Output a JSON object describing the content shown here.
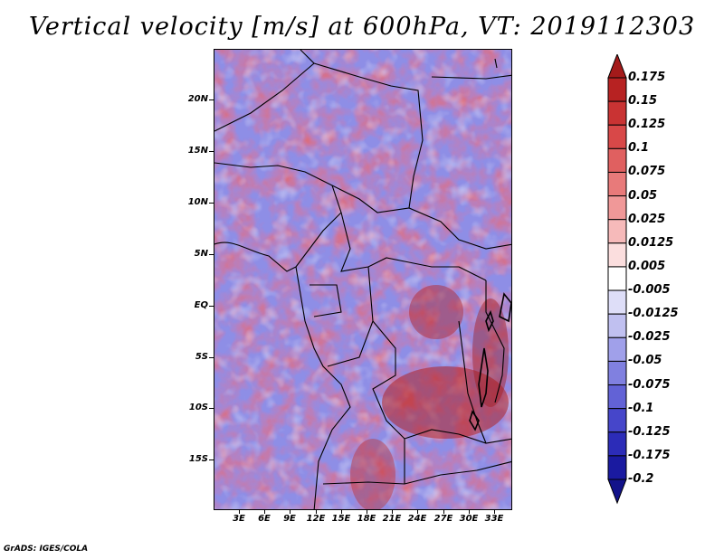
{
  "title": "Vertical velocity [m/s] at 600hPa, VT: 2019112303",
  "credit": "GrADS: IGES/COLA",
  "lat_labels": [
    "20N",
    "15N",
    "10N",
    "5N",
    "EQ",
    "5S",
    "10S",
    "15S"
  ],
  "lon_labels": [
    "3E",
    "6E",
    "9E",
    "12E",
    "15E",
    "18E",
    "21E",
    "24E",
    "27E",
    "30E",
    "33E"
  ],
  "colorbar": {
    "labels": [
      "0.175",
      "0.15",
      "0.125",
      "0.1",
      "0.075",
      "0.05",
      "0.025",
      "0.0125",
      "0.005",
      "-0.005",
      "-0.0125",
      "-0.025",
      "-0.05",
      "-0.075",
      "-0.1",
      "-0.125",
      "-0.175",
      "-0.2"
    ],
    "colors": [
      "#a41a1a",
      "#b72222",
      "#c93333",
      "#d84848",
      "#e06060",
      "#e87a7a",
      "#f09898",
      "#f6baba",
      "#fbdede",
      "#ffffff",
      "#dedef8",
      "#c0c0f0",
      "#a0a0ea",
      "#8080e0",
      "#6262d6",
      "#4646ca",
      "#2c2cb8",
      "#1a1aa0",
      "#12128a"
    ]
  }
}
